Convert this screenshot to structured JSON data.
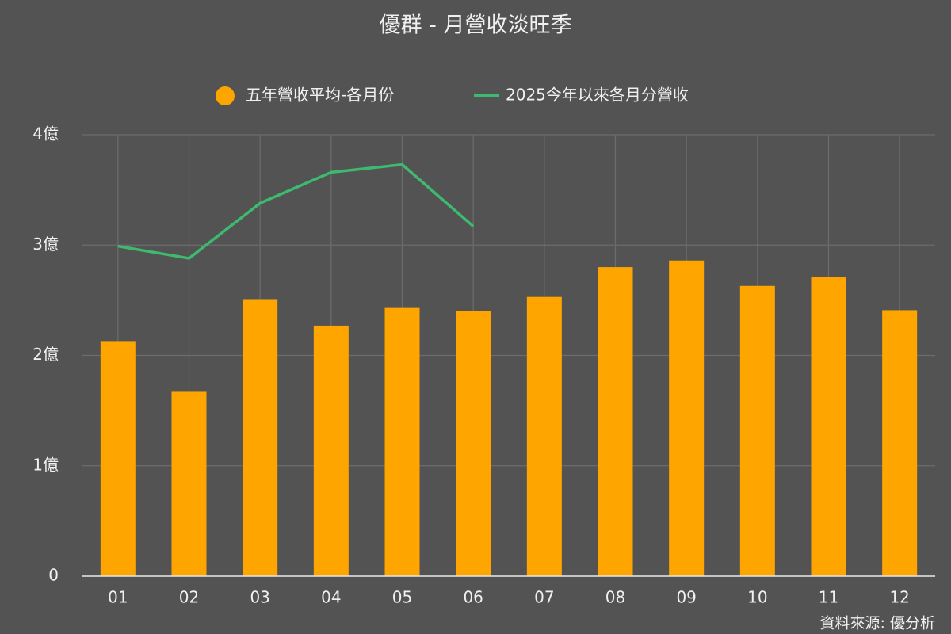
{
  "chart_data": {
    "type": "bar",
    "title": "優群 - 月營收淡旺季",
    "source": "資料來源: 優分析",
    "categories": [
      "01",
      "02",
      "03",
      "04",
      "05",
      "06",
      "07",
      "08",
      "09",
      "10",
      "11",
      "12"
    ],
    "series": [
      {
        "name": "五年營收平均-各月份",
        "type": "bar",
        "color": "#ffa500",
        "values": [
          2.13,
          1.67,
          2.51,
          2.27,
          2.43,
          2.4,
          2.53,
          2.8,
          2.86,
          2.63,
          2.71,
          2.41
        ]
      },
      {
        "name": "2025今年以來各月分營收",
        "type": "line",
        "color": "#3dba6f",
        "values": [
          2.99,
          2.88,
          3.38,
          3.66,
          3.73,
          3.17,
          null,
          null,
          null,
          null,
          null,
          null
        ]
      }
    ],
    "ylim": [
      0,
      4
    ],
    "yticks": [
      0,
      {
        "value": 1,
        "label": "1億"
      },
      {
        "value": 2,
        "label": "2億"
      },
      {
        "value": 3,
        "label": "3億"
      },
      {
        "value": 4,
        "label": "4億"
      }
    ],
    "grid": true,
    "legend": "top"
  }
}
